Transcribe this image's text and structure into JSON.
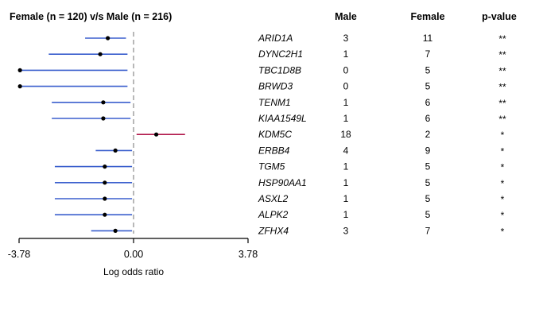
{
  "chart_data": {
    "type": "forest",
    "title": "Female (n = 120) v/s Male (n = 216)",
    "xlabel": "Log odds ratio",
    "xlim": [
      -3.78,
      3.78
    ],
    "x_ticks": [
      "-3.78",
      "0.00",
      "3.78"
    ],
    "column_headers": {
      "male": "Male",
      "female": "Female",
      "pvalue": "p-value"
    },
    "colors": {
      "decreased": "#3a5fcd",
      "increased": "#b0174a",
      "reference_line": "#999999",
      "point": "#000000"
    },
    "rows": [
      {
        "gene": "ARID1A",
        "log_or": -0.85,
        "ci_low": -1.6,
        "ci_high": -0.25,
        "male": "3",
        "female": "11",
        "pvalue": "**"
      },
      {
        "gene": "DYNC2H1",
        "log_or": -1.1,
        "ci_low": -2.8,
        "ci_high": -0.2,
        "male": "1",
        "female": "7",
        "pvalue": "**"
      },
      {
        "gene": "TBC1D8B",
        "log_or": -3.75,
        "ci_low": -3.78,
        "ci_high": -0.2,
        "male": "0",
        "female": "5",
        "pvalue": "**"
      },
      {
        "gene": "BRWD3",
        "log_or": -3.75,
        "ci_low": -3.78,
        "ci_high": -0.2,
        "male": "0",
        "female": "5",
        "pvalue": "**"
      },
      {
        "gene": "TENM1",
        "log_or": -1.0,
        "ci_low": -2.7,
        "ci_high": -0.1,
        "male": "1",
        "female": "6",
        "pvalue": "**"
      },
      {
        "gene": "KIAA1549L",
        "log_or": -1.0,
        "ci_low": -2.7,
        "ci_high": -0.1,
        "male": "1",
        "female": "6",
        "pvalue": "**"
      },
      {
        "gene": "KDM5C",
        "log_or": 0.75,
        "ci_low": 0.1,
        "ci_high": 1.7,
        "male": "18",
        "female": "2",
        "pvalue": "*"
      },
      {
        "gene": "ERBB4",
        "log_or": -0.6,
        "ci_low": -1.25,
        "ci_high": -0.05,
        "male": "4",
        "female": "9",
        "pvalue": "*"
      },
      {
        "gene": "TGM5",
        "log_or": -0.95,
        "ci_low": -2.6,
        "ci_high": -0.05,
        "male": "1",
        "female": "5",
        "pvalue": "*"
      },
      {
        "gene": "HSP90AA1",
        "log_or": -0.95,
        "ci_low": -2.6,
        "ci_high": -0.05,
        "male": "1",
        "female": "5",
        "pvalue": "*"
      },
      {
        "gene": "ASXL2",
        "log_or": -0.95,
        "ci_low": -2.6,
        "ci_high": -0.05,
        "male": "1",
        "female": "5",
        "pvalue": "*"
      },
      {
        "gene": "ALPK2",
        "log_or": -0.95,
        "ci_low": -2.6,
        "ci_high": -0.05,
        "male": "1",
        "female": "5",
        "pvalue": "*"
      },
      {
        "gene": "ZFHX4",
        "log_or": -0.6,
        "ci_low": -1.4,
        "ci_high": -0.05,
        "male": "3",
        "female": "7",
        "pvalue": "*"
      }
    ]
  }
}
